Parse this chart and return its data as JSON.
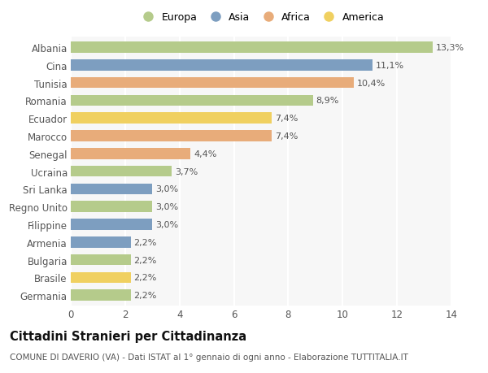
{
  "categories": [
    "Albania",
    "Cina",
    "Tunisia",
    "Romania",
    "Ecuador",
    "Marocco",
    "Senegal",
    "Ucraina",
    "Sri Lanka",
    "Regno Unito",
    "Filippine",
    "Armenia",
    "Bulgaria",
    "Brasile",
    "Germania"
  ],
  "values": [
    13.3,
    11.1,
    10.4,
    8.9,
    7.4,
    7.4,
    4.4,
    3.7,
    3.0,
    3.0,
    3.0,
    2.2,
    2.2,
    2.2,
    2.2
  ],
  "labels": [
    "13,3%",
    "11,1%",
    "10,4%",
    "8,9%",
    "7,4%",
    "7,4%",
    "4,4%",
    "3,7%",
    "3,0%",
    "3,0%",
    "3,0%",
    "2,2%",
    "2,2%",
    "2,2%",
    "2,2%"
  ],
  "continents": [
    "Europa",
    "Asia",
    "Africa",
    "Europa",
    "America",
    "Africa",
    "Africa",
    "Europa",
    "Asia",
    "Europa",
    "Asia",
    "Asia",
    "Europa",
    "America",
    "Europa"
  ],
  "colors": {
    "Europa": "#b5cb8b",
    "Asia": "#7d9ec0",
    "Africa": "#e8ac7a",
    "America": "#f0d060"
  },
  "title": "Cittadini Stranieri per Cittadinanza",
  "subtitle": "COMUNE DI DAVERIO (VA) - Dati ISTAT al 1° gennaio di ogni anno - Elaborazione TUTTITALIA.IT",
  "xlim": [
    0,
    14
  ],
  "xticks": [
    0,
    2,
    4,
    6,
    8,
    10,
    12,
    14
  ],
  "background_color": "#ffffff",
  "plot_bg_color": "#f7f7f7",
  "grid_color": "#ffffff",
  "bar_height": 0.62,
  "title_fontsize": 10.5,
  "subtitle_fontsize": 7.5,
  "tick_fontsize": 8.5,
  "label_fontsize": 8.0,
  "legend_fontsize": 9.0
}
